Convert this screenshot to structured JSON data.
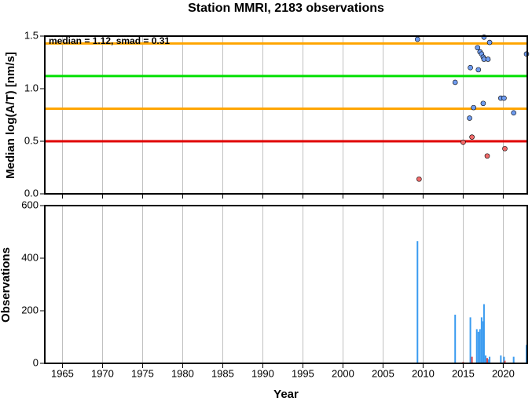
{
  "chart_data": [
    {
      "type": "scatter",
      "title": "Station MMRI, 2183 observations",
      "y_label": "Median log(A/T) [nm/s]",
      "annotation": "median = 1.12, smad = 0.31",
      "xlim": [
        1962.8,
        2023
      ],
      "ylim": [
        0,
        1.5
      ],
      "yticks": [
        {
          "value": 0,
          "label": "0.0"
        },
        0.5,
        {
          "value": 1,
          "label": "1.0"
        },
        1.5
      ],
      "grid": true,
      "hlines": [
        {
          "value": 1.43,
          "color": "#ffa500"
        },
        {
          "value": 1.12,
          "color": "#00e000"
        },
        {
          "value": 0.81,
          "color": "#ffa500"
        },
        {
          "value": 0.5,
          "color": "#e00000"
        }
      ],
      "series": [
        {
          "color": "#6f9cf0",
          "x": [
            2009.3,
            2014.0,
            2015.8,
            2015.9,
            2016.3,
            2016.8,
            2016.9,
            2017.1,
            2017.3,
            2017.5,
            2017.5,
            2017.6,
            2017.6,
            2018.1,
            2018.3,
            2019.7,
            2020.1,
            2021.3,
            2022.9
          ],
          "values": [
            1.47,
            1.06,
            0.72,
            1.2,
            0.82,
            1.39,
            1.18,
            1.35,
            1.33,
            0.86,
            1.3,
            1.28,
            1.49,
            1.28,
            1.44,
            0.91,
            0.91,
            0.77,
            1.33
          ]
        },
        {
          "color": "#f06a6a",
          "x": [
            2009.5,
            2015.0,
            2016.1,
            2018.0,
            2020.2
          ],
          "values": [
            0.14,
            0.49,
            0.54,
            0.36,
            0.43
          ]
        }
      ]
    },
    {
      "type": "bar",
      "y_label": "Observations",
      "x_label": "Year",
      "xlim": [
        1962.8,
        2023
      ],
      "xticks": [
        1965,
        1970,
        1975,
        1980,
        1985,
        1990,
        1995,
        2000,
        2005,
        2010,
        2015,
        2020
      ],
      "ylim": [
        0,
        600
      ],
      "yticks": [
        0,
        200,
        400,
        600
      ],
      "grid": true,
      "series": [
        {
          "color": "#3a9bf0",
          "x": [
            2009.3,
            2014.0,
            2015.9,
            2016.7,
            2016.9,
            2017.1,
            2017.3,
            2017.5,
            2017.6,
            2017.8,
            2018.1,
            2018.3,
            2019.7,
            2020.1,
            2021.3,
            2022.9
          ],
          "values": [
            465,
            185,
            175,
            130,
            120,
            130,
            175,
            160,
            225,
            30,
            15,
            25,
            30,
            25,
            25,
            70
          ]
        },
        {
          "color": "#e04848",
          "x": [
            2009.5,
            2015.0,
            2016.1,
            2018.0,
            2020.2
          ],
          "values": [
            3,
            5,
            25,
            20,
            10
          ]
        }
      ]
    }
  ]
}
